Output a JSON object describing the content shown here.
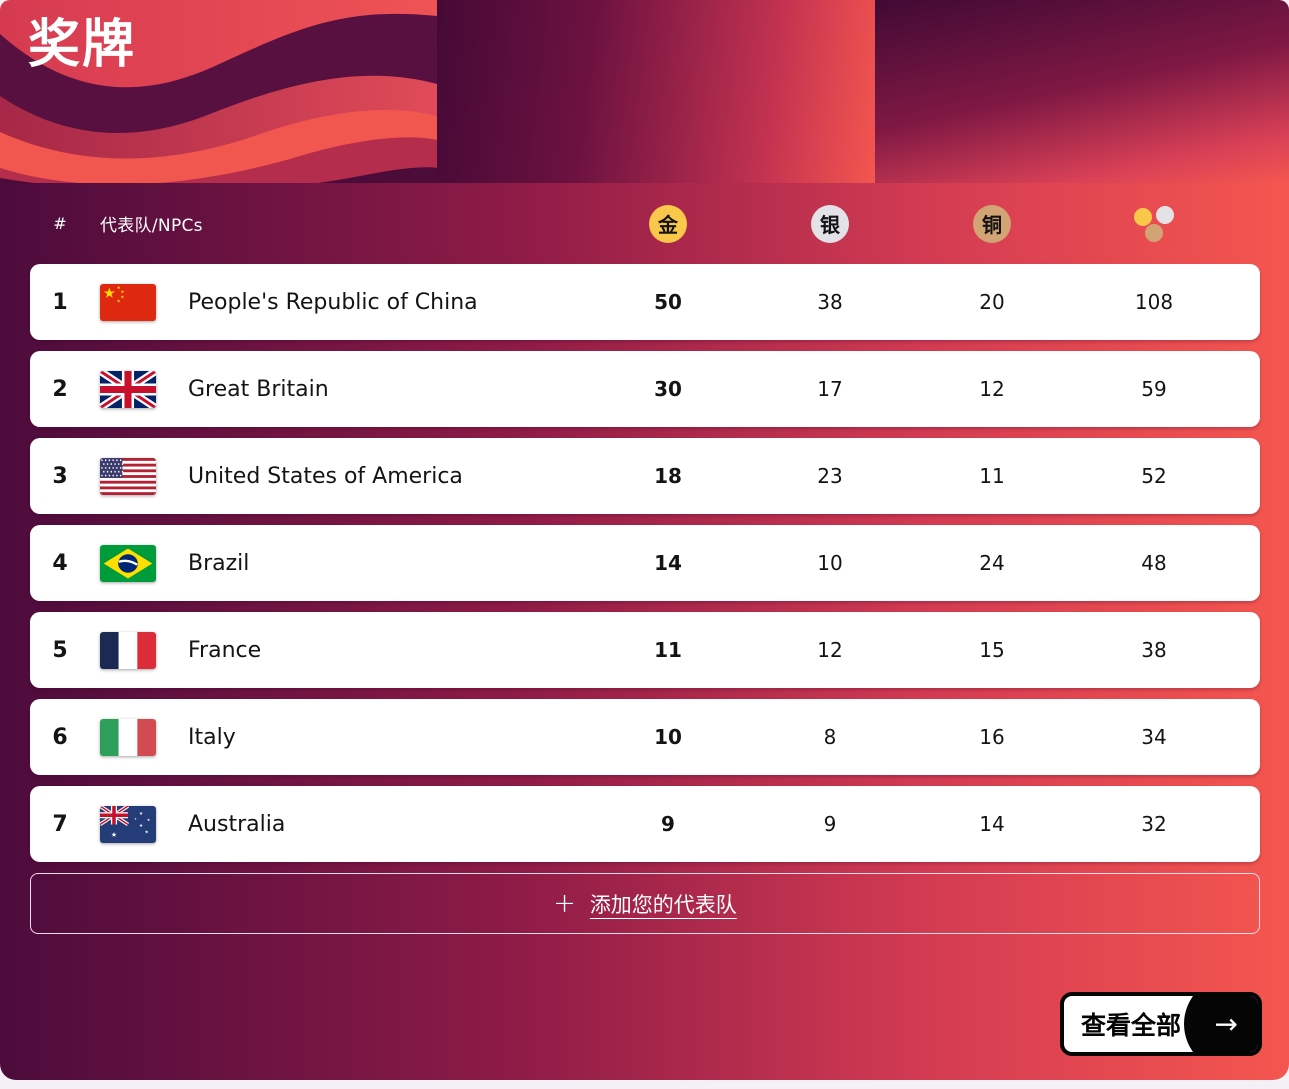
{
  "title": "奖牌",
  "table": {
    "rank_header": "#",
    "team_header": "代表队/NPCs",
    "medal_headers": [
      {
        "name": "gold",
        "label": "金",
        "color": "#f9c74a"
      },
      {
        "name": "silver",
        "label": "银",
        "color": "#e3e3e7"
      },
      {
        "name": "bronze",
        "label": "铜",
        "color": "#d2a374"
      }
    ],
    "total_header_icon": "total-medals-dots",
    "rows": [
      {
        "rank": "1",
        "country": "People's Republic of China",
        "flag": "cn",
        "gold": "50",
        "silver": "38",
        "bronze": "20",
        "total": "108"
      },
      {
        "rank": "2",
        "country": "Great Britain",
        "flag": "gb",
        "gold": "30",
        "silver": "17",
        "bronze": "12",
        "total": "59"
      },
      {
        "rank": "3",
        "country": "United States of America",
        "flag": "us",
        "gold": "18",
        "silver": "23",
        "bronze": "11",
        "total": "52"
      },
      {
        "rank": "4",
        "country": "Brazil",
        "flag": "br",
        "gold": "14",
        "silver": "10",
        "bronze": "24",
        "total": "48"
      },
      {
        "rank": "5",
        "country": "France",
        "flag": "fr",
        "gold": "11",
        "silver": "12",
        "bronze": "15",
        "total": "38"
      },
      {
        "rank": "6",
        "country": "Italy",
        "flag": "it",
        "gold": "10",
        "silver": "8",
        "bronze": "16",
        "total": "34"
      },
      {
        "rank": "7",
        "country": "Australia",
        "flag": "au",
        "gold": "9",
        "silver": "9",
        "bronze": "14",
        "total": "32"
      }
    ]
  },
  "add_team": {
    "plus": "+",
    "label": "添加您的代表队"
  },
  "view_all": {
    "label": "查看全部",
    "arrow": "→"
  },
  "colors": {
    "dark_purple": "#4c0b3c",
    "coral_red": "#f5564f",
    "crimson": "#c23250",
    "card": "#ffffff",
    "gold": "#f9c74a",
    "silver": "#e3e3e7",
    "bronze": "#d2a374",
    "button_black": "#050505"
  }
}
